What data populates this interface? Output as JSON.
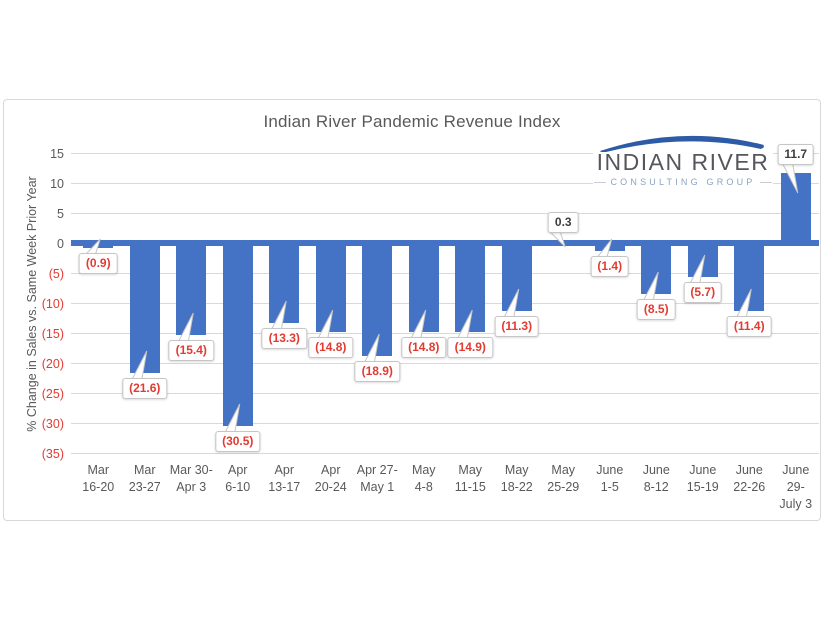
{
  "logo": {
    "line1": "INDIAN RIVER",
    "line2": "CONSULTING GROUP",
    "arc_color": "#2d5ba6",
    "name_color": "#55575c",
    "tagline_color": "#8ba4c2"
  },
  "colors": {
    "bar": "#4472c4",
    "gridline": "#d9d9d9",
    "frame_border": "#d8d8d8",
    "axis_text": "#595959",
    "negative_text": "#e13b32",
    "positive_callout_text": "#3d3d3d"
  },
  "chart_data": {
    "type": "bar",
    "title": "Indian River Pandemic Revenue Index",
    "ylabel": "% Change in Sales vs. Same Week Prior Year",
    "xlabel": "",
    "ylim": [
      -35,
      15
    ],
    "ytick_step": 5,
    "yticks_display": [
      "15",
      "10",
      "5",
      "0",
      "(5)",
      "(10)",
      "(15)",
      "(20)",
      "(25)",
      "(30)",
      "(35)"
    ],
    "grid": "horizontal",
    "legend": "none",
    "categories": [
      [
        "Mar",
        "16-20"
      ],
      [
        "Mar",
        "23-27"
      ],
      [
        "Mar 30-",
        "Apr 3"
      ],
      [
        "Apr",
        "6-10"
      ],
      [
        "Apr",
        "13-17"
      ],
      [
        "Apr",
        "20-24"
      ],
      [
        "Apr 27-",
        "May 1"
      ],
      [
        "May",
        "4-8"
      ],
      [
        "May",
        "11-15"
      ],
      [
        "May",
        "18-22"
      ],
      [
        "May",
        "25-29"
      ],
      [
        "June",
        "1-5"
      ],
      [
        "June",
        "8-12"
      ],
      [
        "June",
        "15-19"
      ],
      [
        "June",
        "22-26"
      ],
      [
        "June",
        "29-",
        "July 3"
      ]
    ],
    "values": [
      -0.9,
      -21.6,
      -15.4,
      -30.5,
      -13.3,
      -14.8,
      -18.9,
      -14.8,
      -14.9,
      -11.3,
      0.3,
      -1.4,
      -8.5,
      -5.7,
      -11.4,
      11.7
    ],
    "data_labels": [
      "(0.9)",
      "(21.6)",
      "(15.4)",
      "(30.5)",
      "(13.3)",
      "(14.8)",
      "(18.9)",
      "(14.8)",
      "(14.9)",
      "(11.3)",
      "0.3",
      "(1.4)",
      "(8.5)",
      "(5.7)",
      "(11.4)",
      "11.7"
    ]
  }
}
